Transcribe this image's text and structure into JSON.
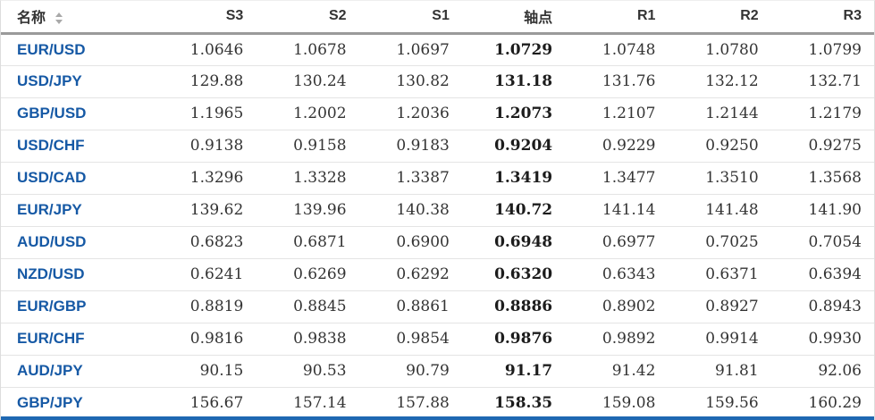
{
  "table": {
    "columns": [
      {
        "key": "name",
        "label": "名称",
        "sortable": true
      },
      {
        "key": "s3",
        "label": "S3"
      },
      {
        "key": "s2",
        "label": "S2"
      },
      {
        "key": "s1",
        "label": "S1"
      },
      {
        "key": "pivot",
        "label": "轴点"
      },
      {
        "key": "r1",
        "label": "R1"
      },
      {
        "key": "r2",
        "label": "R2"
      },
      {
        "key": "r3",
        "label": "R3"
      }
    ],
    "rows": [
      {
        "name": "EUR/USD",
        "s3": "1.0646",
        "s2": "1.0678",
        "s1": "1.0697",
        "pivot": "1.0729",
        "r1": "1.0748",
        "r2": "1.0780",
        "r3": "1.0799"
      },
      {
        "name": "USD/JPY",
        "s3": "129.88",
        "s2": "130.24",
        "s1": "130.82",
        "pivot": "131.18",
        "r1": "131.76",
        "r2": "132.12",
        "r3": "132.71"
      },
      {
        "name": "GBP/USD",
        "s3": "1.1965",
        "s2": "1.2002",
        "s1": "1.2036",
        "pivot": "1.2073",
        "r1": "1.2107",
        "r2": "1.2144",
        "r3": "1.2179"
      },
      {
        "name": "USD/CHF",
        "s3": "0.9138",
        "s2": "0.9158",
        "s1": "0.9183",
        "pivot": "0.9204",
        "r1": "0.9229",
        "r2": "0.9250",
        "r3": "0.9275"
      },
      {
        "name": "USD/CAD",
        "s3": "1.3296",
        "s2": "1.3328",
        "s1": "1.3387",
        "pivot": "1.3419",
        "r1": "1.3477",
        "r2": "1.3510",
        "r3": "1.3568"
      },
      {
        "name": "EUR/JPY",
        "s3": "139.62",
        "s2": "139.96",
        "s1": "140.38",
        "pivot": "140.72",
        "r1": "141.14",
        "r2": "141.48",
        "r3": "141.90"
      },
      {
        "name": "AUD/USD",
        "s3": "0.6823",
        "s2": "0.6871",
        "s1": "0.6900",
        "pivot": "0.6948",
        "r1": "0.6977",
        "r2": "0.7025",
        "r3": "0.7054"
      },
      {
        "name": "NZD/USD",
        "s3": "0.6241",
        "s2": "0.6269",
        "s1": "0.6292",
        "pivot": "0.6320",
        "r1": "0.6343",
        "r2": "0.6371",
        "r3": "0.6394"
      },
      {
        "name": "EUR/GBP",
        "s3": "0.8819",
        "s2": "0.8845",
        "s1": "0.8861",
        "pivot": "0.8886",
        "r1": "0.8902",
        "r2": "0.8927",
        "r3": "0.8943"
      },
      {
        "name": "EUR/CHF",
        "s3": "0.9816",
        "s2": "0.9838",
        "s1": "0.9854",
        "pivot": "0.9876",
        "r1": "0.9892",
        "r2": "0.9914",
        "r3": "0.9930"
      },
      {
        "name": "AUD/JPY",
        "s3": "90.15",
        "s2": "90.53",
        "s1": "90.79",
        "pivot": "91.17",
        "r1": "91.42",
        "r2": "91.81",
        "r3": "92.06"
      },
      {
        "name": "GBP/JPY",
        "s3": "156.67",
        "s2": "157.14",
        "s1": "157.88",
        "pivot": "158.35",
        "r1": "159.08",
        "r2": "159.56",
        "r3": "160.29"
      }
    ]
  },
  "colors": {
    "pair_link": "#1659a5",
    "pivot_text": "#1c1c1c",
    "number_text": "#333333",
    "header_text": "#333333",
    "header_border": "#9a9a9a",
    "row_border": "#e4e4e4",
    "outer_border": "#dddddd",
    "bottom_bar": "#1e68b2",
    "background": "#ffffff"
  }
}
